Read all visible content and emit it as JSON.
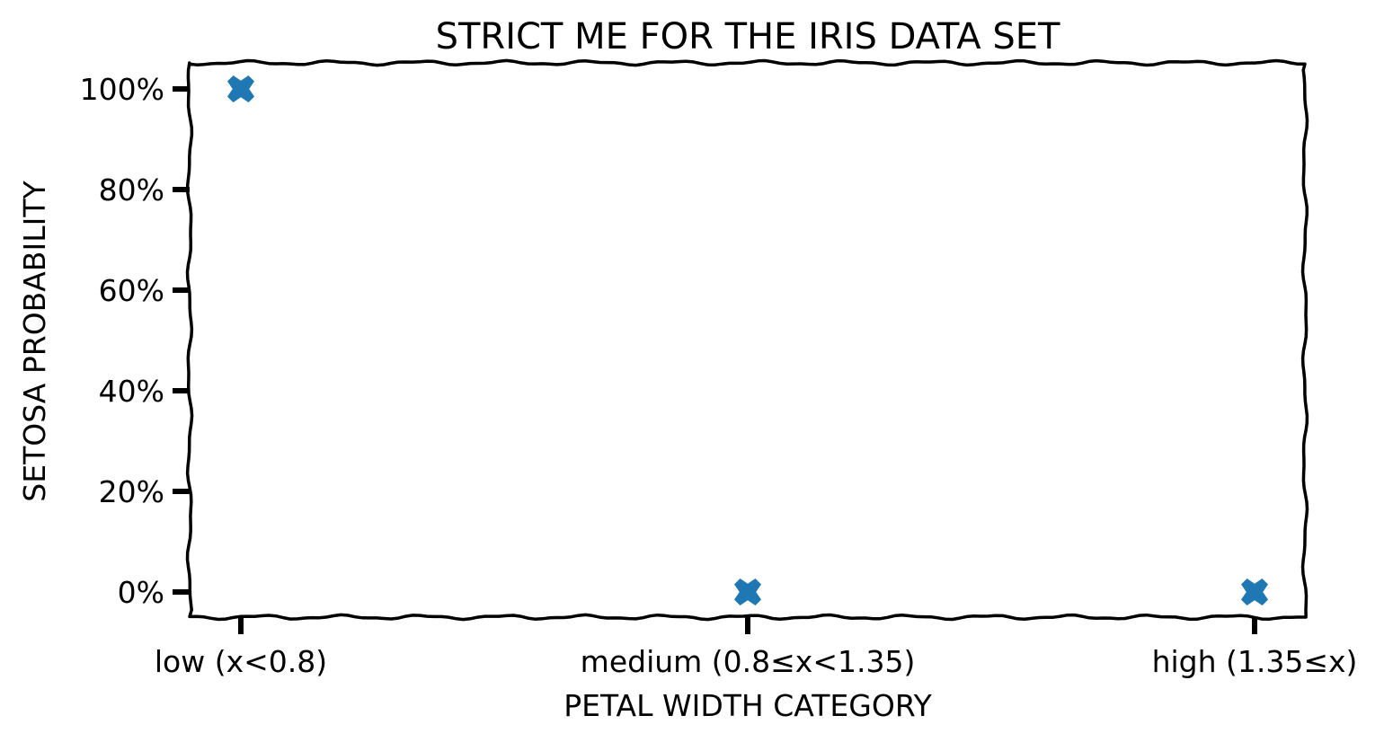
{
  "chart_data": {
    "type": "scatter",
    "title": "STRICT ME FOR THE IRIS DATA SET",
    "xlabel": "PETAL WIDTH CATEGORY",
    "ylabel": "SETOSA PROBABILITY",
    "categories": [
      "low (x<0.8)",
      "medium (0.8≤x<1.35)",
      "high (1.35≤x)"
    ],
    "values": [
      1.0,
      0.0,
      0.0
    ],
    "ylim": [
      0,
      1
    ],
    "yticks": [
      0,
      0.2,
      0.4,
      0.6,
      0.8,
      1.0
    ],
    "ytick_labels": [
      "0%",
      "20%",
      "40%",
      "60%",
      "80%",
      "100%"
    ],
    "marker": "X",
    "marker_color": "#1f77b4",
    "grid": false,
    "style": "xkcd"
  }
}
